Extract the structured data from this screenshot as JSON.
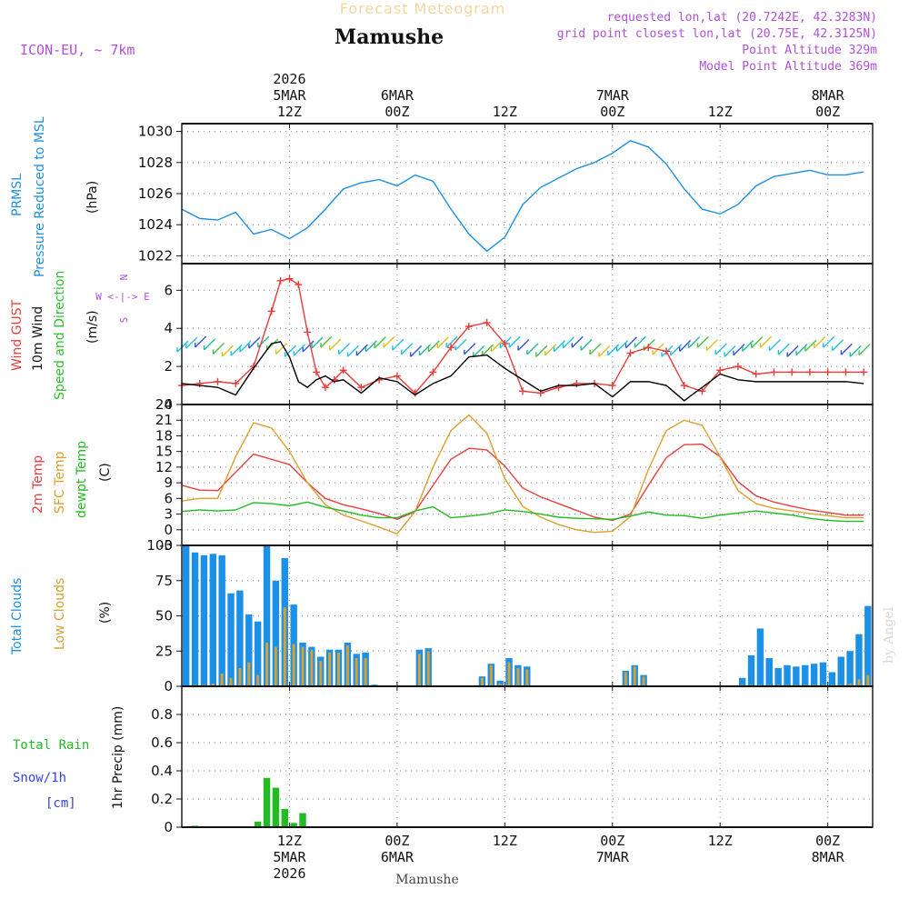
{
  "header": {
    "overlay_title": "Forecast Meteogram",
    "location": "Mamushe",
    "model": "ICON-EU, ~ 7km",
    "requested": "requested lon,lat (20.7242E, 42.3283N)",
    "gridpoint": "grid point closest lon,lat (20.75E, 42.3125N)",
    "point_alt": "Point Altitude 329m",
    "model_alt": "Model Point Altitude 369m",
    "bottom_label": "Mamushe",
    "watermark": "by Angel"
  },
  "colors": {
    "pressure": "#1e90e0",
    "gust": "#e83c3c",
    "wind": "#000000",
    "direction": "#2fbf2f",
    "temp2m": "#e84040",
    "sfc": "#dca02c",
    "dew": "#22bb22",
    "total_cloud": "#1a90e8",
    "low_cloud": "#d6a032",
    "rain": "#22bb22",
    "snow": "#3344dd",
    "purple": "#b050d8",
    "grid": "#999999"
  },
  "time_axis": {
    "top_ticks": [
      {
        "line1": "2026",
        "line2": "5MAR",
        "line3": "12Z"
      },
      {
        "line1": "",
        "line2": "6MAR",
        "line3": "00Z"
      },
      {
        "line1": "",
        "line2": "",
        "line3": "12Z"
      },
      {
        "line1": "",
        "line2": "7MAR",
        "line3": "00Z"
      },
      {
        "line1": "",
        "line2": "",
        "line3": "12Z"
      },
      {
        "line1": "",
        "line2": "8MAR",
        "line3": "00Z"
      }
    ],
    "bottom_ticks": [
      {
        "line1": "12Z",
        "line2": "5MAR",
        "line3": "2026"
      },
      {
        "line1": "00Z",
        "line2": "6MAR",
        "line3": ""
      },
      {
        "line1": "12Z",
        "line2": "",
        "line3": ""
      },
      {
        "line1": "00Z",
        "line2": "7MAR",
        "line3": ""
      },
      {
        "line1": "12Z",
        "line2": "",
        "line3": ""
      },
      {
        "line1": "00Z",
        "line2": "8MAR",
        "line3": ""
      }
    ]
  },
  "panels": {
    "pressure": {
      "label1": "PRMSL",
      "label2": "Pressure Reduced to MSL",
      "unit": "(hPa)"
    },
    "wind": {
      "label_gust": "Wind GUST",
      "label_wind": "10m Wind",
      "label_dir": "Speed and Direction",
      "unit": "(m/s)",
      "compass_n": "N",
      "compass_s": "S",
      "compass_we": "W <-|-> E"
    },
    "temp": {
      "label_2m": "2m Temp",
      "label_sfc": "SFC Temp",
      "label_dew": "dewpt Temp",
      "unit": "(C)"
    },
    "clouds": {
      "label_total": "Total Clouds",
      "label_low": "Low Clouds",
      "unit": "(%)"
    },
    "precip": {
      "label_rain": "Total  Rain",
      "label_snow": "Snow/1h",
      "label_cm": "[cm]",
      "unit": "1hr Precip (mm)"
    }
  },
  "chart_data": [
    {
      "type": "line",
      "title": "PRMSL Pressure Reduced to MSL",
      "ylabel": "(hPa)",
      "ylim": [
        1021.5,
        1030.5
      ],
      "yticks": [
        1022,
        1024,
        1026,
        1028,
        1030
      ],
      "x_hours": [
        0,
        2,
        4,
        6,
        8,
        10,
        12,
        14,
        16,
        18,
        20,
        22,
        24,
        26,
        28,
        30,
        32,
        34,
        36,
        38,
        40,
        42,
        44,
        46,
        48,
        50,
        52,
        54,
        56,
        58,
        60,
        62,
        64,
        66,
        68,
        70,
        72,
        74,
        76
      ],
      "series": [
        {
          "name": "PRMSL",
          "values": [
            1025.0,
            1024.4,
            1024.3,
            1024.8,
            1023.4,
            1023.7,
            1023.1,
            1023.8,
            1025.0,
            1026.3,
            1026.7,
            1026.9,
            1026.5,
            1027.2,
            1026.8,
            1025.0,
            1023.4,
            1022.3,
            1023.2,
            1025.3,
            1026.4,
            1027.0,
            1027.6,
            1028.0,
            1028.6,
            1029.4,
            1029.0,
            1027.9,
            1026.3,
            1025.0,
            1024.7,
            1025.3,
            1026.5,
            1027.1,
            1027.3,
            1027.5,
            1027.2,
            1027.2,
            1027.4
          ]
        }
      ]
    },
    {
      "type": "line",
      "title": "Wind GUST / 10m Wind Speed and Direction",
      "ylabel": "(m/s)",
      "ylim": [
        0,
        7.4
      ],
      "yticks": [
        0,
        2,
        4,
        6
      ],
      "x_hours": [
        0,
        2,
        4,
        6,
        8,
        10,
        11,
        12,
        13,
        14,
        15,
        16,
        17,
        18,
        20,
        22,
        24,
        26,
        28,
        30,
        32,
        34,
        36,
        38,
        40,
        42,
        44,
        46,
        48,
        50,
        52,
        54,
        56,
        58,
        60,
        62,
        64,
        66,
        68,
        70,
        72,
        74,
        76
      ],
      "series": [
        {
          "name": "Wind GUST",
          "values": [
            1.0,
            1.1,
            1.2,
            1.1,
            2.0,
            4.9,
            6.5,
            6.6,
            6.3,
            3.8,
            1.7,
            0.9,
            1.3,
            1.8,
            0.9,
            1.3,
            1.5,
            0.6,
            1.7,
            3.0,
            4.1,
            4.3,
            3.2,
            0.7,
            0.6,
            0.9,
            1.1,
            1.1,
            1.0,
            2.7,
            3.0,
            2.8,
            1.0,
            0.7,
            1.8,
            2.0,
            1.6,
            1.7,
            1.7,
            1.7,
            1.7,
            1.7,
            1.7
          ]
        },
        {
          "name": "10m Wind",
          "values": [
            1.1,
            1.0,
            0.9,
            0.5,
            1.9,
            3.2,
            3.3,
            2.5,
            1.2,
            0.9,
            1.3,
            1.5,
            1.2,
            1.3,
            0.6,
            1.4,
            1.2,
            0.5,
            1.1,
            1.5,
            2.5,
            2.6,
            1.9,
            1.3,
            0.7,
            1.0,
            1.0,
            1.1,
            0.4,
            1.2,
            1.2,
            1.0,
            0.2,
            0.9,
            1.6,
            1.3,
            1.2,
            1.2,
            1.2,
            1.2,
            1.2,
            1.2,
            1.1
          ]
        }
      ],
      "direction_barbs": "colored wind arrows drawn along the panel at about 3 m/s"
    },
    {
      "type": "line",
      "title": "2m Temp / SFC Temp / dewpt Temp",
      "ylabel": "(C)",
      "ylim": [
        -3,
        24
      ],
      "yticks": [
        -3,
        0,
        3,
        6,
        9,
        12,
        15,
        18,
        21,
        24
      ],
      "x_hours": [
        0,
        2,
        4,
        6,
        8,
        10,
        12,
        14,
        16,
        18,
        20,
        22,
        24,
        26,
        28,
        30,
        32,
        34,
        36,
        38,
        40,
        42,
        44,
        46,
        48,
        50,
        52,
        54,
        56,
        58,
        60,
        62,
        64,
        66,
        68,
        70,
        72,
        74,
        76
      ],
      "series": [
        {
          "name": "2m Temp",
          "values": [
            8.5,
            7.6,
            7.5,
            11.0,
            14.5,
            13.5,
            12.5,
            9.0,
            6.0,
            4.8,
            4.0,
            3.1,
            2.0,
            3.5,
            8.5,
            13.5,
            15.6,
            15.3,
            12.2,
            8.0,
            6.3,
            5.0,
            3.7,
            2.4,
            1.8,
            3.0,
            8.5,
            13.8,
            16.3,
            16.4,
            14.0,
            9.2,
            6.5,
            5.3,
            4.5,
            3.8,
            3.3,
            2.8,
            2.8
          ]
        },
        {
          "name": "SFC Temp",
          "values": [
            5.5,
            6.0,
            6.0,
            14.0,
            20.5,
            19.5,
            15.0,
            9.0,
            4.8,
            2.8,
            1.7,
            0.5,
            -0.8,
            3.5,
            12.0,
            19.0,
            22.0,
            18.5,
            9.8,
            4.5,
            2.4,
            1.0,
            0.0,
            -0.5,
            -0.3,
            2.5,
            11.5,
            19.0,
            21.0,
            20.0,
            14.0,
            7.5,
            5.0,
            4.1,
            3.6,
            3.1,
            2.7,
            2.3,
            2.3
          ]
        },
        {
          "name": "dewpt Temp",
          "values": [
            3.5,
            3.8,
            3.6,
            3.8,
            5.2,
            5.0,
            4.6,
            5.3,
            4.3,
            3.6,
            2.8,
            2.3,
            2.3,
            3.6,
            4.4,
            2.3,
            2.6,
            3.0,
            3.8,
            3.5,
            3.0,
            2.4,
            2.2,
            2.1,
            2.0,
            2.6,
            3.4,
            2.8,
            2.7,
            2.2,
            2.8,
            3.2,
            3.6,
            3.2,
            2.8,
            2.2,
            1.8,
            1.6,
            1.6
          ]
        }
      ]
    },
    {
      "type": "bar",
      "title": "Total Clouds / Low Clouds",
      "ylabel": "(%)",
      "ylim": [
        0,
        100
      ],
      "yticks": [
        0,
        25,
        50,
        75,
        100
      ],
      "x_hours": [
        0,
        1,
        2,
        3,
        4,
        5,
        6,
        7,
        8,
        9,
        10,
        11,
        12,
        13,
        14,
        15,
        16,
        17,
        18,
        19,
        20,
        21,
        26,
        27,
        33,
        34,
        35,
        36,
        37,
        38,
        49,
        50,
        51,
        62,
        63,
        64,
        65,
        66,
        67,
        68,
        69,
        70,
        71,
        72,
        73,
        74,
        75,
        76
      ],
      "series": [
        {
          "name": "Total Clouds",
          "values": [
            100,
            95,
            93,
            94,
            93,
            66,
            68,
            51,
            46,
            100,
            75,
            91,
            58,
            31,
            28,
            21,
            26,
            26,
            31,
            23,
            24,
            0,
            26,
            27,
            7,
            16,
            4,
            20,
            15,
            14,
            11,
            15,
            8,
            6,
            22,
            41,
            20,
            13,
            15,
            14,
            15,
            16,
            17,
            10,
            21,
            25,
            37,
            57
          ]
        },
        {
          "name": "Low Clouds",
          "values": [
            0,
            1,
            1,
            2,
            9,
            6,
            13,
            17,
            8,
            31,
            28,
            56,
            30,
            28,
            26,
            18,
            24,
            24,
            29,
            20,
            20,
            0,
            23,
            25,
            6,
            15,
            2,
            17,
            13,
            12,
            10,
            14,
            7,
            1,
            1,
            1,
            1,
            1,
            1,
            1,
            1,
            1,
            1,
            1,
            1,
            2,
            5,
            8
          ]
        }
      ]
    },
    {
      "type": "bar",
      "title": "1hr Precip",
      "ylabel": "1hr Precip (mm)",
      "ylim": [
        0,
        1.0
      ],
      "yticks": [
        0,
        0.2,
        0.4,
        0.6,
        0.8
      ],
      "x_hours": [
        1,
        8,
        9,
        10,
        11,
        12,
        13
      ],
      "series": [
        {
          "name": "Total Rain",
          "values": [
            0.01,
            0.04,
            0.35,
            0.28,
            0.13,
            0.03,
            0.1
          ]
        },
        {
          "name": "Snow/1h",
          "values": [
            0,
            0,
            0,
            0,
            0,
            0,
            0
          ]
        }
      ]
    }
  ]
}
